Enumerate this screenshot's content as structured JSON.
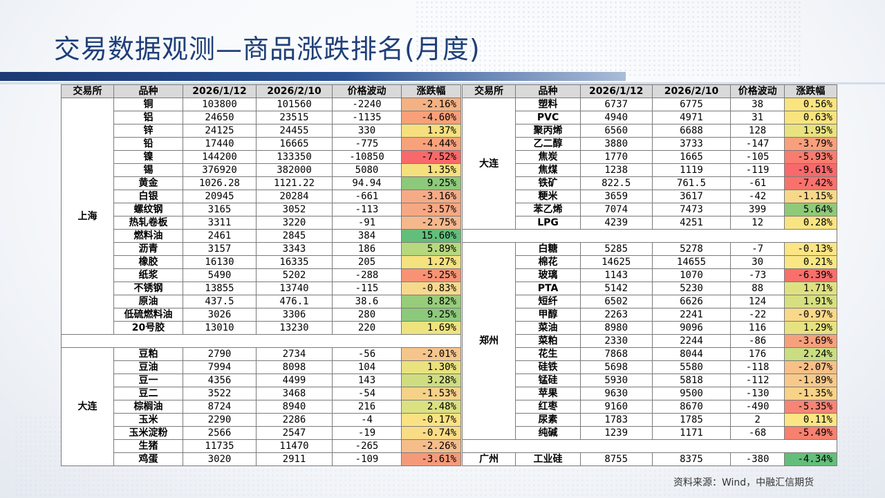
{
  "title": "交易数据观测—商品涨跌排名(月度)",
  "source": "资料来源：Wind，中融汇信期货",
  "headers": [
    "交易所",
    "品种",
    "2026/1/12",
    "2026/2/10",
    "价格波动",
    "涨跌幅"
  ],
  "left": {
    "groups": [
      {
        "exchange": "上海",
        "rows": [
          [
            "铜",
            "103800",
            "101560",
            "-2240",
            "-2.16%",
            "#f4b183"
          ],
          [
            "铝",
            "24650",
            "23515",
            "-1135",
            "-4.60%",
            "#f8a07a"
          ],
          [
            "锌",
            "24125",
            "24455",
            "330",
            "1.37%",
            "#f6e07e"
          ],
          [
            "铅",
            "17440",
            "16665",
            "-775",
            "-4.44%",
            "#f8a27c"
          ],
          [
            "镍",
            "144200",
            "133350",
            "-10850",
            "-7.52%",
            "#f8696b"
          ],
          [
            "锡",
            "376920",
            "382000",
            "5080",
            "1.35%",
            "#f6e07e"
          ],
          [
            "黄金",
            "1026.28",
            "1121.22",
            "94.94",
            "9.25%",
            "#8cc97a"
          ],
          [
            "白银",
            "20945",
            "20284",
            "-661",
            "-3.16%",
            "#f6ab86"
          ],
          [
            "螺纹钢",
            "3165",
            "3052",
            "-113",
            "-3.57%",
            "#f6a884"
          ],
          [
            "热轧卷板",
            "3311",
            "3220",
            "-91",
            "-2.75%",
            "#f5b88c"
          ],
          [
            "燃料油",
            "2461",
            "2845",
            "384",
            "15.60%",
            "#63be7b"
          ],
          [
            "沥青",
            "3157",
            "3343",
            "186",
            "5.89%",
            "#b6d87e"
          ],
          [
            "橡胶",
            "16130",
            "16335",
            "205",
            "1.27%",
            "#f4e27f"
          ],
          [
            "纸浆",
            "5490",
            "5202",
            "-288",
            "-5.25%",
            "#f89275"
          ],
          [
            "不锈钢",
            "13855",
            "13740",
            "-115",
            "-0.83%",
            "#f7d98c"
          ],
          [
            "原油",
            "437.5",
            "476.1",
            "38.6",
            "8.82%",
            "#97cc7b"
          ],
          [
            "低硫燃料油",
            "3026",
            "3306",
            "280",
            "9.25%",
            "#8cc97a"
          ],
          [
            "20号胶",
            "13010",
            "13230",
            "220",
            "1.69%",
            "#efe37f"
          ]
        ]
      },
      {
        "exchange": "大连",
        "rows": [
          [
            "豆粕",
            "2790",
            "2734",
            "-56",
            "-2.01%",
            "#f5c58c"
          ],
          [
            "豆油",
            "7994",
            "8098",
            "104",
            "1.30%",
            "#e9e27f"
          ],
          [
            "豆一",
            "4356",
            "4499",
            "143",
            "3.28%",
            "#cfdd80"
          ],
          [
            "豆二",
            "3522",
            "3468",
            "-54",
            "-1.53%",
            "#f6d18a"
          ],
          [
            "棕榈油",
            "8724",
            "8940",
            "216",
            "2.48%",
            "#dbe081"
          ],
          [
            "玉米",
            "2290",
            "2286",
            "-4",
            "-0.17%",
            "#fae283"
          ],
          [
            "玉米淀粉",
            "2566",
            "2547",
            "-19",
            "-0.74%",
            "#f9dc86"
          ],
          [
            "生猪",
            "11735",
            "11470",
            "-265",
            "-2.26%",
            "#f5bd8a"
          ],
          [
            "鸡蛋",
            "3020",
            "2911",
            "-109",
            "-3.61%",
            "#f49a7b"
          ]
        ]
      }
    ]
  },
  "right": {
    "groups": [
      {
        "exchange": "大连",
        "rows": [
          [
            "塑料",
            "6737",
            "6775",
            "38",
            "0.56%",
            "#f9e47f"
          ],
          [
            "PVC",
            "4940",
            "4971",
            "31",
            "0.63%",
            "#f7e47f"
          ],
          [
            "聚丙烯",
            "6560",
            "6688",
            "128",
            "1.95%",
            "#e8e27f"
          ],
          [
            "乙二醇",
            "3880",
            "3733",
            "-147",
            "-3.79%",
            "#f8a07d"
          ],
          [
            "焦炭",
            "1770",
            "1665",
            "-105",
            "-5.93%",
            "#f87d70"
          ],
          [
            "焦煤",
            "1238",
            "1119",
            "-119",
            "-9.61%",
            "#f8696b"
          ],
          [
            "铁矿",
            "822.5",
            "761.5",
            "-61",
            "-7.42%",
            "#f8726d"
          ],
          [
            "粳米",
            "3659",
            "3617",
            "-42",
            "-1.15%",
            "#f8d888"
          ],
          [
            "苯乙烯",
            "7074",
            "7473",
            "399",
            "5.64%",
            "#8fc97a"
          ],
          [
            "LPG",
            "4239",
            "4251",
            "12",
            "0.28%",
            "#fae482"
          ]
        ]
      },
      {
        "exchange": "郑州",
        "rows": [
          [
            "白糖",
            "5285",
            "5278",
            "-7",
            "-0.13%",
            "#fbe585"
          ],
          [
            "棉花",
            "14625",
            "14655",
            "30",
            "0.21%",
            "#f9e783"
          ],
          [
            "玻璃",
            "1143",
            "1070",
            "-73",
            "-6.39%",
            "#f86f6c"
          ],
          [
            "PTA",
            "5142",
            "5230",
            "88",
            "1.71%",
            "#dfe181"
          ],
          [
            "短纤",
            "6502",
            "6626",
            "124",
            "1.91%",
            "#d6df81"
          ],
          [
            "甲醇",
            "2263",
            "2241",
            "-22",
            "-0.97%",
            "#f9d888"
          ],
          [
            "菜油",
            "8980",
            "9096",
            "116",
            "1.29%",
            "#e6e281"
          ],
          [
            "菜粕",
            "2330",
            "2244",
            "-86",
            "-3.69%",
            "#f6a07e"
          ],
          [
            "花生",
            "7868",
            "8044",
            "176",
            "2.24%",
            "#cadd80"
          ],
          [
            "硅铁",
            "5698",
            "5580",
            "-118",
            "-2.07%",
            "#f6c088"
          ],
          [
            "锰硅",
            "5930",
            "5818",
            "-112",
            "-1.89%",
            "#f7c98a"
          ],
          [
            "苹果",
            "9630",
            "9500",
            "-130",
            "-1.35%",
            "#f8d289"
          ],
          [
            "红枣",
            "9160",
            "8670",
            "-490",
            "-5.35%",
            "#f78575"
          ],
          [
            "尿素",
            "1783",
            "1785",
            "2",
            "0.11%",
            "#fbe683"
          ],
          [
            "纯碱",
            "1239",
            "1171",
            "-68",
            "-5.49%",
            "#f8806f"
          ]
        ]
      },
      {
        "exchange": "广州",
        "rows": [
          [
            "工业硅",
            "8755",
            "8375",
            "-380",
            "-4.34%",
            "#63be7b"
          ]
        ]
      }
    ]
  }
}
